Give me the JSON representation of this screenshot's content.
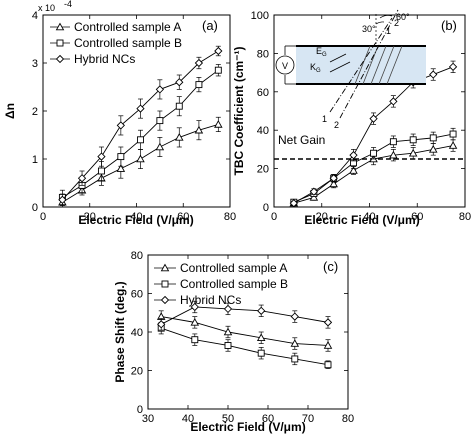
{
  "chart_data": [
    {
      "type": "line",
      "panel_label": "(a)",
      "xlabel": "Electric Field (V/μm)",
      "ylabel": "Δn",
      "y_multiplier": "x 10",
      "y_exponent": "-4",
      "xlim": [
        0,
        80
      ],
      "ylim": [
        0,
        4
      ],
      "xticks": [
        "0",
        "20",
        "40",
        "60",
        "80"
      ],
      "yticks": [
        "0",
        "1",
        "2",
        "3",
        "4"
      ],
      "legend_position": "top-left",
      "series": [
        {
          "name": "Controlled sample A",
          "marker": "triangle",
          "x": [
            8.3,
            16.7,
            25,
            33.3,
            41.7,
            50,
            58.3,
            66.7,
            75
          ],
          "y": [
            0.1,
            0.35,
            0.6,
            0.8,
            1.0,
            1.25,
            1.45,
            1.6,
            1.72
          ],
          "err": [
            0.1,
            0.1,
            0.15,
            0.2,
            0.2,
            0.2,
            0.2,
            0.2,
            0.15
          ]
        },
        {
          "name": "Controlled sample B",
          "marker": "square",
          "x": [
            8.3,
            16.7,
            25,
            33.3,
            41.7,
            50,
            58.3,
            66.7,
            75
          ],
          "y": [
            0.2,
            0.45,
            0.75,
            1.05,
            1.4,
            1.8,
            2.1,
            2.55,
            2.85
          ],
          "err": [
            0.15,
            0.15,
            0.2,
            0.2,
            0.2,
            0.2,
            0.2,
            0.15,
            0.12
          ]
        },
        {
          "name": "Hybrid NCs",
          "marker": "diamond",
          "x": [
            8.3,
            16.7,
            25,
            33.3,
            41.7,
            50,
            58.3,
            66.7,
            75
          ],
          "y": [
            0.15,
            0.6,
            1.05,
            1.7,
            2.05,
            2.45,
            2.6,
            3.0,
            3.25
          ],
          "err": [
            0.12,
            0.15,
            0.2,
            0.2,
            0.2,
            0.2,
            0.15,
            0.12,
            0.1
          ]
        }
      ]
    },
    {
      "type": "line",
      "panel_label": "(b)",
      "xlabel": "Electric Field (V/μm)",
      "ylabel": "TBC Coefficient (cm⁻¹)",
      "xlim": [
        0,
        80
      ],
      "ylim": [
        0,
        100
      ],
      "xticks": [
        "0",
        "20",
        "40",
        "60",
        "80"
      ],
      "yticks": [
        "0",
        "20",
        "40",
        "60",
        "80",
        "100"
      ],
      "reference_line": {
        "label": "Net Gain",
        "y": 25
      },
      "inset_labels": {
        "angle1": "30°",
        "angle2": "60°",
        "e": "E",
        "e_sub": "G",
        "k": "K",
        "k_sub": "G",
        "source": "V",
        "grating1": "1",
        "grating2": "2"
      },
      "series": [
        {
          "name": "Controlled sample A",
          "marker": "triangle",
          "x": [
            8.3,
            16.7,
            25,
            33.3,
            41.7,
            50,
            58.3,
            66.7,
            75
          ],
          "y": [
            2,
            5,
            12,
            19,
            25,
            27,
            28,
            30,
            32
          ],
          "err": [
            1,
            1.5,
            2,
            2,
            3,
            3,
            3,
            3,
            3
          ]
        },
        {
          "name": "Controlled sample B",
          "marker": "square",
          "x": [
            8.3,
            16.7,
            25,
            33.3,
            41.7,
            50,
            58.3,
            66.7,
            75
          ],
          "y": [
            2.5,
            7,
            15,
            23,
            28,
            34,
            35,
            36,
            38
          ],
          "err": [
            1,
            1.5,
            2,
            3,
            3,
            3,
            3,
            3,
            3
          ]
        },
        {
          "name": "Hybrid NCs",
          "marker": "diamond",
          "x": [
            8.3,
            16.7,
            25,
            33.3,
            41.7,
            50,
            58.3,
            66.7,
            75
          ],
          "y": [
            2,
            8,
            15,
            27,
            46,
            55,
            65,
            69,
            73
          ],
          "err": [
            1,
            1.5,
            2,
            3,
            3,
            3,
            3,
            3,
            3
          ]
        }
      ]
    },
    {
      "type": "line",
      "panel_label": "(c)",
      "xlabel": "Electric Field (V/μm)",
      "ylabel": "Phase Shift (deg.)",
      "xlim": [
        30,
        80
      ],
      "ylim": [
        0,
        80
      ],
      "xticks": [
        "30",
        "40",
        "50",
        "60",
        "70",
        "80"
      ],
      "yticks": [
        "0",
        "20",
        "40",
        "60",
        "80"
      ],
      "legend_position": "top-left",
      "series": [
        {
          "name": "Controlled sample A",
          "marker": "triangle",
          "x": [
            33.3,
            41.7,
            50,
            58.3,
            66.7,
            75
          ],
          "y": [
            48,
            45,
            40,
            37,
            34,
            33
          ],
          "err": [
            3,
            3,
            3,
            3,
            3,
            3
          ]
        },
        {
          "name": "Controlled sample B",
          "marker": "square",
          "x": [
            33.3,
            41.7,
            50,
            58.3,
            66.7,
            75
          ],
          "y": [
            42,
            36,
            33,
            29,
            26,
            23
          ],
          "err": [
            3,
            3,
            3,
            3,
            3,
            2
          ]
        },
        {
          "name": "Hybrid NCs",
          "marker": "diamond",
          "x": [
            33.3,
            41.7,
            50,
            58.3,
            66.7,
            75
          ],
          "y": [
            44,
            53,
            52,
            51,
            48,
            45
          ],
          "err": [
            3,
            3,
            3,
            3,
            3,
            3
          ]
        }
      ]
    }
  ]
}
